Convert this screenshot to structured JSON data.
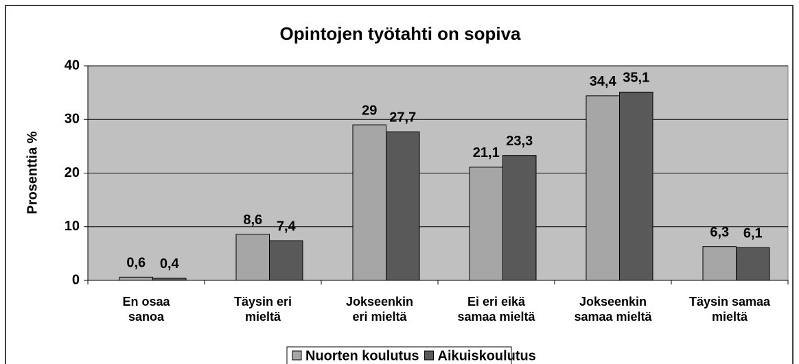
{
  "chart_data": {
    "type": "bar",
    "title": "Opintojen työtahti on sopiva",
    "y_label": "Prosenttia %",
    "categories": [
      "En osaa\nsanoa",
      "Täysin eri\nmieltä",
      "Jokseenkin\neri mieltä",
      "Ei eri eikä\nsamaa mieltä",
      "Jokseenkin\nsamaa mieltä",
      "Täysin samaa\nmieltä"
    ],
    "series": [
      {
        "name": "Nuorten koulutus",
        "color": "#a6a6a6",
        "values": [
          0.6,
          8.6,
          29,
          21.1,
          34.4,
          6.3
        ],
        "value_labels": [
          "0,6",
          "8,6",
          "29",
          "21,1",
          "34,4",
          "6,3"
        ]
      },
      {
        "name": "Aikuiskoulutus",
        "color": "#595959",
        "values": [
          0.4,
          7.4,
          27.7,
          23.3,
          35.1,
          6.1
        ],
        "value_labels": [
          "0,4",
          "7,4",
          "27,7",
          "23,3",
          "35,1",
          "6,1"
        ]
      }
    ],
    "ylim": [
      0,
      40
    ],
    "yticks": [
      0,
      10,
      20,
      30,
      40
    ],
    "grid": true,
    "legend": "bottom"
  }
}
